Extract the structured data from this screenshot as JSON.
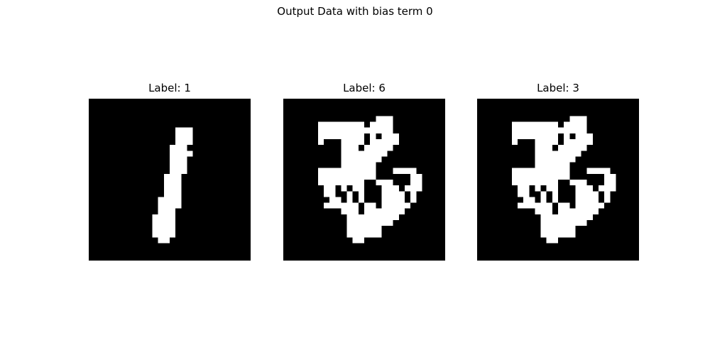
{
  "figure": {
    "title": "Output Data with bias term 0"
  },
  "chart_data": [
    {
      "type": "heatmap",
      "title": "Label: 1",
      "label": 1,
      "grid_size": [
        28,
        28
      ],
      "colormap": "gray",
      "foreground_color": "#ffffff",
      "background_color": "#000000",
      "axes_visible": false,
      "white_runs": [
        [
          5,
          [
            [
              15,
              17
            ]
          ]
        ],
        [
          6,
          [
            [
              15,
              17
            ]
          ]
        ],
        [
          7,
          [
            [
              15,
              17
            ]
          ]
        ],
        [
          8,
          [
            [
              14,
              16
            ]
          ]
        ],
        [
          9,
          [
            [
              14,
              17
            ]
          ]
        ],
        [
          10,
          [
            [
              14,
              16
            ]
          ]
        ],
        [
          11,
          [
            [
              14,
              16
            ]
          ]
        ],
        [
          12,
          [
            [
              14,
              16
            ]
          ]
        ],
        [
          13,
          [
            [
              13,
              15
            ]
          ]
        ],
        [
          14,
          [
            [
              13,
              15
            ]
          ]
        ],
        [
          15,
          [
            [
              13,
              15
            ]
          ]
        ],
        [
          16,
          [
            [
              13,
              15
            ]
          ]
        ],
        [
          17,
          [
            [
              12,
              15
            ]
          ]
        ],
        [
          18,
          [
            [
              12,
              15
            ]
          ]
        ],
        [
          19,
          [
            [
              12,
              14
            ]
          ]
        ],
        [
          20,
          [
            [
              11,
              14
            ]
          ]
        ],
        [
          21,
          [
            [
              11,
              14
            ]
          ]
        ],
        [
          22,
          [
            [
              11,
              14
            ]
          ]
        ],
        [
          23,
          [
            [
              11,
              14
            ]
          ]
        ],
        [
          24,
          [
            [
              12,
              13
            ]
          ]
        ]
      ]
    },
    {
      "type": "heatmap",
      "title": "Label: 6",
      "label": 6,
      "grid_size": [
        28,
        28
      ],
      "colormap": "gray",
      "foreground_color": "#ffffff",
      "background_color": "#000000",
      "axes_visible": false,
      "white_runs": [
        [
          3,
          [
            [
              16,
              18
            ]
          ]
        ],
        [
          4,
          [
            [
              6,
              13
            ],
            [
              15,
              18
            ]
          ]
        ],
        [
          5,
          [
            [
              6,
              18
            ]
          ]
        ],
        [
          6,
          [
            [
              6,
              13
            ],
            [
              15,
              15
            ],
            [
              17,
              19
            ]
          ]
        ],
        [
          7,
          [
            [
              6,
              6
            ],
            [
              10,
              13
            ],
            [
              15,
              19
            ]
          ]
        ],
        [
          8,
          [
            [
              10,
              12
            ],
            [
              14,
              18
            ]
          ]
        ],
        [
          9,
          [
            [
              10,
              17
            ]
          ]
        ],
        [
          10,
          [
            [
              10,
              16
            ]
          ]
        ],
        [
          11,
          [
            [
              10,
              15
            ]
          ]
        ],
        [
          12,
          [
            [
              6,
              15
            ],
            [
              19,
              22
            ]
          ]
        ],
        [
          13,
          [
            [
              6,
              15
            ],
            [
              22,
              23
            ]
          ]
        ],
        [
          14,
          [
            [
              6,
              13
            ],
            [
              16,
              18
            ],
            [
              22,
              23
            ]
          ]
        ],
        [
          15,
          [
            [
              7,
              8
            ],
            [
              10,
              10
            ],
            [
              12,
              13
            ],
            [
              17,
              19
            ],
            [
              21,
              23
            ]
          ]
        ],
        [
          16,
          [
            [
              7,
              8
            ],
            [
              11,
              11
            ],
            [
              13,
              13
            ],
            [
              17,
              20
            ],
            [
              22,
              22
            ]
          ]
        ],
        [
          17,
          [
            [
              8,
              9
            ],
            [
              11,
              11
            ],
            [
              13,
              13
            ],
            [
              17,
              20
            ],
            [
              22,
              22
            ]
          ]
        ],
        [
          18,
          [
            [
              7,
              10
            ],
            [
              11,
              12
            ],
            [
              14,
              15
            ],
            [
              17,
              21
            ]
          ]
        ],
        [
          19,
          [
            [
              10,
              12
            ],
            [
              14,
              20
            ]
          ]
        ],
        [
          20,
          [
            [
              11,
              19
            ]
          ]
        ],
        [
          21,
          [
            [
              11,
              18
            ]
          ]
        ],
        [
          22,
          [
            [
              11,
              16
            ]
          ]
        ],
        [
          23,
          [
            [
              11,
              16
            ]
          ]
        ],
        [
          24,
          [
            [
              12,
              13
            ]
          ]
        ]
      ]
    },
    {
      "type": "heatmap",
      "title": "Label: 3",
      "label": 3,
      "grid_size": [
        28,
        28
      ],
      "colormap": "gray",
      "foreground_color": "#ffffff",
      "background_color": "#000000",
      "axes_visible": false,
      "white_runs": [
        [
          3,
          [
            [
              16,
              18
            ]
          ]
        ],
        [
          4,
          [
            [
              6,
              13
            ],
            [
              15,
              18
            ]
          ]
        ],
        [
          5,
          [
            [
              6,
              18
            ]
          ]
        ],
        [
          6,
          [
            [
              6,
              13
            ],
            [
              15,
              15
            ],
            [
              17,
              19
            ]
          ]
        ],
        [
          7,
          [
            [
              6,
              6
            ],
            [
              10,
              13
            ],
            [
              15,
              19
            ]
          ]
        ],
        [
          8,
          [
            [
              10,
              12
            ],
            [
              14,
              18
            ]
          ]
        ],
        [
          9,
          [
            [
              10,
              17
            ]
          ]
        ],
        [
          10,
          [
            [
              10,
              16
            ]
          ]
        ],
        [
          11,
          [
            [
              10,
              15
            ]
          ]
        ],
        [
          12,
          [
            [
              6,
              15
            ],
            [
              19,
              22
            ]
          ]
        ],
        [
          13,
          [
            [
              6,
              15
            ],
            [
              22,
              23
            ]
          ]
        ],
        [
          14,
          [
            [
              6,
              13
            ],
            [
              16,
              18
            ],
            [
              22,
              23
            ]
          ]
        ],
        [
          15,
          [
            [
              7,
              8
            ],
            [
              10,
              10
            ],
            [
              12,
              13
            ],
            [
              17,
              19
            ],
            [
              21,
              23
            ]
          ]
        ],
        [
          16,
          [
            [
              7,
              8
            ],
            [
              11,
              11
            ],
            [
              13,
              13
            ],
            [
              17,
              20
            ],
            [
              22,
              22
            ]
          ]
        ],
        [
          17,
          [
            [
              8,
              9
            ],
            [
              11,
              11
            ],
            [
              13,
              13
            ],
            [
              17,
              20
            ],
            [
              22,
              22
            ]
          ]
        ],
        [
          18,
          [
            [
              7,
              10
            ],
            [
              11,
              12
            ],
            [
              14,
              15
            ],
            [
              17,
              21
            ]
          ]
        ],
        [
          19,
          [
            [
              10,
              12
            ],
            [
              14,
              20
            ]
          ]
        ],
        [
          20,
          [
            [
              11,
              19
            ]
          ]
        ],
        [
          21,
          [
            [
              11,
              18
            ]
          ]
        ],
        [
          22,
          [
            [
              11,
              16
            ]
          ]
        ],
        [
          23,
          [
            [
              11,
              16
            ]
          ]
        ],
        [
          24,
          [
            [
              12,
              13
            ]
          ]
        ]
      ]
    }
  ]
}
